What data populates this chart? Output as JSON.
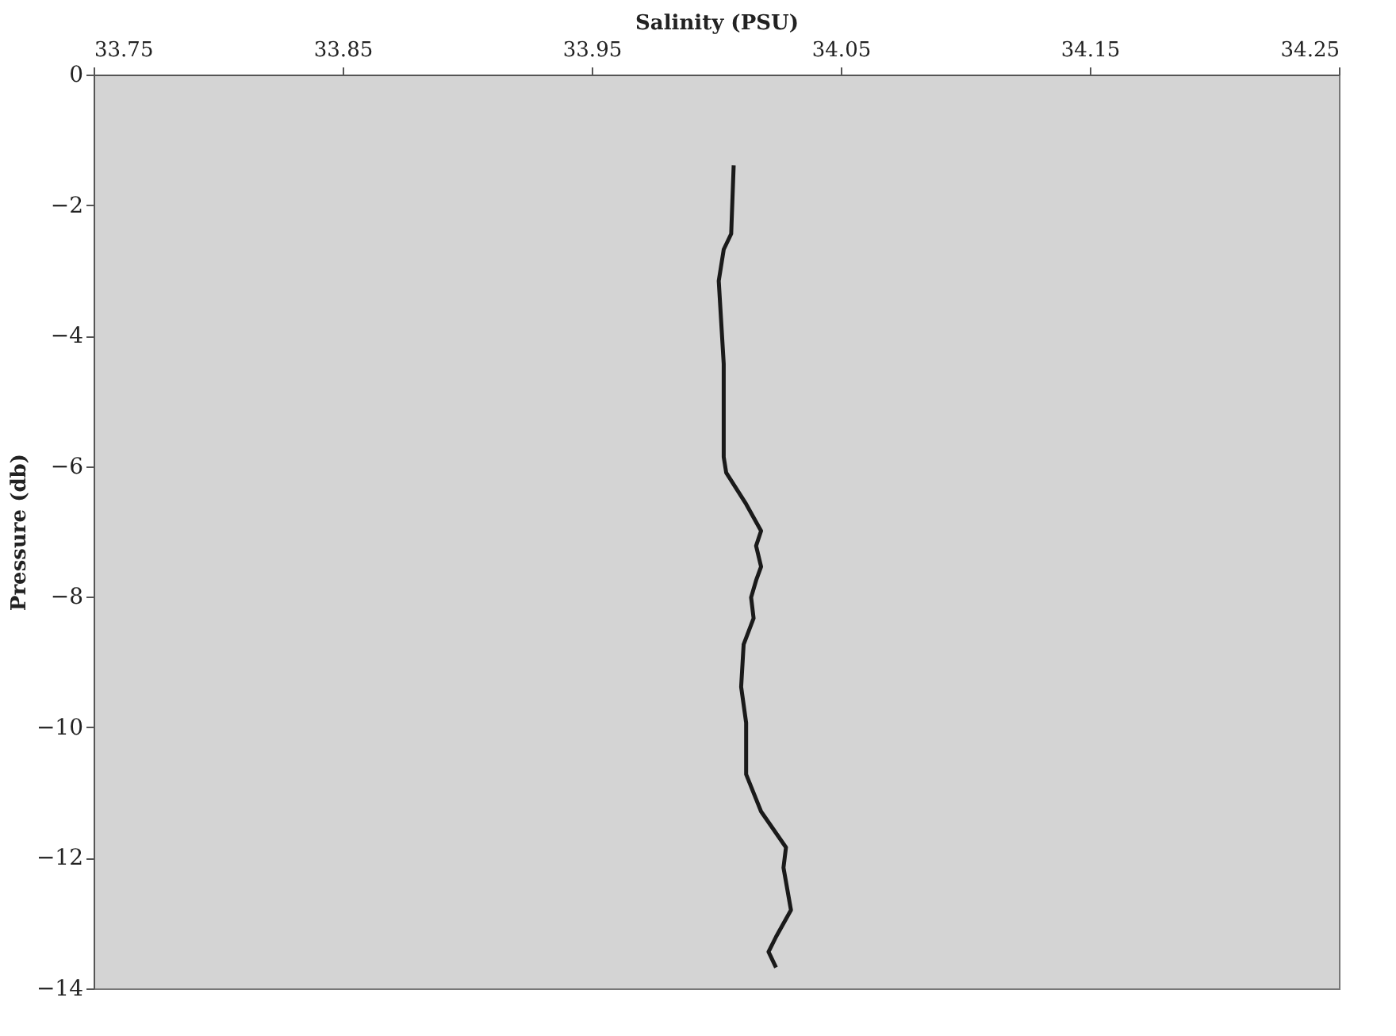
{
  "chart_data": {
    "type": "line",
    "xlabel": "Salinity (PSU)",
    "ylabel": "Pressure (db)",
    "xlim": [
      33.75,
      34.25
    ],
    "xticks": [
      33.75,
      33.85,
      33.95,
      34.05,
      34.15,
      34.25
    ],
    "ylim": [
      -14,
      0
    ],
    "yticks": [
      -14,
      -12,
      -10,
      -8,
      -6,
      -4,
      -2,
      0
    ],
    "grid": false,
    "marker": "none",
    "line_style": "solid",
    "series": [
      {
        "color": "#1a1a1a",
        "x": [
          34.007,
          34.006,
          34.003,
          34.001,
          34.003,
          34.003,
          34.004,
          34.012,
          34.018,
          34.016,
          34.018,
          34.016,
          34.014,
          34.015,
          34.011,
          34.01,
          34.012,
          34.012,
          34.018,
          34.028,
          34.027,
          34.03,
          34.024,
          34.021,
          34.024
        ],
        "values": [
          -1.39,
          -2.44,
          -2.68,
          -3.16,
          -4.43,
          -5.86,
          -6.1,
          -6.58,
          -6.99,
          -7.22,
          -7.54,
          -7.75,
          -8.01,
          -8.33,
          -8.73,
          -9.38,
          -9.93,
          -10.72,
          -11.29,
          -11.84,
          -12.15,
          -12.8,
          -13.21,
          -13.44,
          -13.68
        ]
      }
    ]
  }
}
